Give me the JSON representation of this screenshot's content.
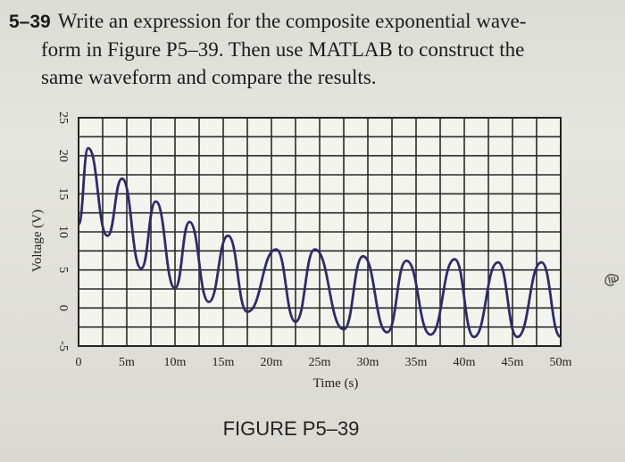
{
  "problem": {
    "number": "5–39",
    "line1": "Write an expression for the composite exponential wave-",
    "line2": "form in Figure P5–39. Then use MATLAB to construct the",
    "line3": "same waveform and compare the results."
  },
  "figure_caption": "FIGURE P5–39",
  "chart_data": {
    "type": "line",
    "title": "",
    "xlabel": "Time (s)",
    "ylabel": "Voltage (V)",
    "xlim": [
      0,
      0.05
    ],
    "ylim": [
      -5,
      25
    ],
    "grid": true,
    "x_ticks": [
      0,
      0.005,
      0.01,
      0.015,
      0.02,
      0.025,
      0.03,
      0.035,
      0.04,
      0.045,
      0.05
    ],
    "x_tick_labels": [
      "0",
      "5m",
      "10m",
      "15m",
      "20m",
      "25m",
      "30m",
      "35m",
      "40m",
      "45m",
      "50m"
    ],
    "y_ticks": [
      -5,
      0,
      5,
      10,
      15,
      20,
      25
    ],
    "y_tick_labels": [
      "-5",
      "0",
      "5",
      "10",
      "15",
      "20",
      "25"
    ],
    "series": [
      {
        "color": "#2e2a6b",
        "start": [
          0.0,
          11.0
        ],
        "peaks": [
          [
            0.001,
            21.0
          ],
          [
            0.0045,
            17.0
          ],
          [
            0.008,
            14.0
          ],
          [
            0.0115,
            11.3
          ],
          [
            0.0155,
            9.5
          ],
          [
            0.0205,
            7.7
          ],
          [
            0.0245,
            7.7
          ],
          [
            0.0295,
            6.8
          ],
          [
            0.034,
            6.2
          ],
          [
            0.039,
            6.4
          ],
          [
            0.0435,
            6.0
          ],
          [
            0.048,
            6.0
          ]
        ],
        "troughs": [
          [
            0.003,
            9.5
          ],
          [
            0.0065,
            5.2
          ],
          [
            0.01,
            2.6
          ],
          [
            0.0135,
            0.8
          ],
          [
            0.0175,
            -0.5
          ],
          [
            0.0225,
            -1.8
          ],
          [
            0.0275,
            -2.8
          ],
          [
            0.032,
            -3.2
          ],
          [
            0.0365,
            -3.5
          ],
          [
            0.041,
            -3.8
          ],
          [
            0.0455,
            -3.8
          ]
        ],
        "end": [
          0.05,
          -3.8
        ]
      }
    ]
  }
}
